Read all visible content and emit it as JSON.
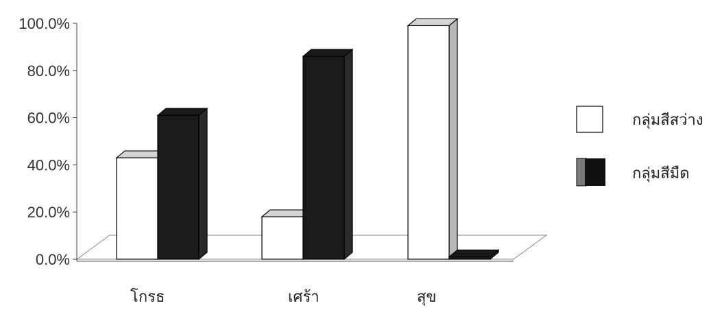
{
  "chart_data": {
    "type": "bar",
    "categories": [
      "โกรธ",
      "เศร้า",
      "สุข"
    ],
    "series": [
      {
        "name": "กลุ่มสีสว่าง",
        "values": [
          43,
          18,
          99
        ],
        "color": "#ffffff",
        "top_color": "#d4d4d4",
        "side_color": "#b8b8b8"
      },
      {
        "name": "กลุ่มสีมืด",
        "values": [
          61,
          86,
          1
        ],
        "color": "#1a1a1a",
        "top_color": "#1a1a1a",
        "side_color": "#2a2a2a"
      }
    ],
    "ylim": [
      0,
      100
    ],
    "yticks": [
      "0.0%",
      "20.0%",
      "40.0%",
      "60.0%",
      "80.0%",
      "100.0%"
    ],
    "title": "",
    "xlabel": "",
    "ylabel": "",
    "legend": "right",
    "grid": false,
    "style": "3d-clustered-column"
  }
}
